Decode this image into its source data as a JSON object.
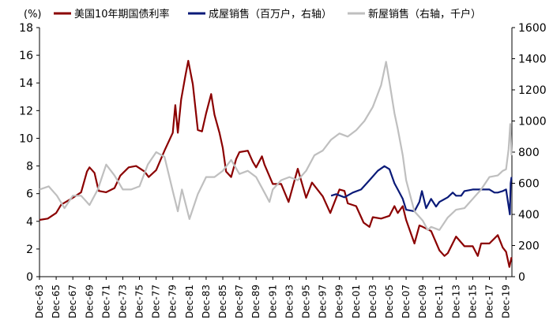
{
  "chart_data": {
    "type": "line",
    "left_unit_label": "(%)",
    "y_left": {
      "min": 0,
      "max": 18,
      "ticks": [
        0,
        2,
        4,
        6,
        8,
        10,
        12,
        14,
        16,
        18
      ]
    },
    "y_right": {
      "min": 0,
      "max": 1600,
      "ticks": [
        0,
        200,
        400,
        600,
        800,
        1000,
        1200,
        1400,
        1600
      ]
    },
    "x_range": [
      1963.9,
      2020.6
    ],
    "x_tick_labels": [
      "Dec-63",
      "Dec-65",
      "Dec-67",
      "Dec-69",
      "Dec-71",
      "Dec-73",
      "Dec-75",
      "Dec-77",
      "Dec-79",
      "Dec-81",
      "Dec-83",
      "Dec-85",
      "Dec-87",
      "Dec-89",
      "Dec-91",
      "Dec-93",
      "Dec-95",
      "Dec-97",
      "Dec-99",
      "Dec-01",
      "Dec-03",
      "Dec-05",
      "Dec-07",
      "Dec-09",
      "Dec-11",
      "Dec-13",
      "Dec-15",
      "Dec-17",
      "Dec-19"
    ],
    "legend_position": "top",
    "series": [
      {
        "name": "美国10年期国债利率",
        "axis": "left",
        "color": "#8B0000",
        "points": [
          [
            1963.9,
            4.1
          ],
          [
            1964.9,
            4.2
          ],
          [
            1965.9,
            4.6
          ],
          [
            1966.5,
            5.2
          ],
          [
            1967.9,
            5.7
          ],
          [
            1968.9,
            6.1
          ],
          [
            1969.6,
            7.6
          ],
          [
            1969.9,
            7.9
          ],
          [
            1970.5,
            7.5
          ],
          [
            1971.0,
            6.2
          ],
          [
            1971.9,
            6.1
          ],
          [
            1972.9,
            6.4
          ],
          [
            1973.6,
            7.3
          ],
          [
            1974.6,
            7.9
          ],
          [
            1975.5,
            8.0
          ],
          [
            1976.5,
            7.6
          ],
          [
            1977.0,
            7.2
          ],
          [
            1977.9,
            7.7
          ],
          [
            1978.9,
            9.1
          ],
          [
            1979.9,
            10.4
          ],
          [
            1980.2,
            12.4
          ],
          [
            1980.5,
            10.4
          ],
          [
            1980.9,
            12.8
          ],
          [
            1981.4,
            14.5
          ],
          [
            1981.75,
            15.6
          ],
          [
            1982.3,
            13.9
          ],
          [
            1982.9,
            10.6
          ],
          [
            1983.4,
            10.5
          ],
          [
            1983.9,
            11.8
          ],
          [
            1984.5,
            13.2
          ],
          [
            1984.9,
            11.7
          ],
          [
            1985.5,
            10.4
          ],
          [
            1985.9,
            9.3
          ],
          [
            1986.3,
            7.6
          ],
          [
            1986.9,
            7.2
          ],
          [
            1987.5,
            8.5
          ],
          [
            1987.9,
            9.0
          ],
          [
            1988.9,
            9.1
          ],
          [
            1989.5,
            8.3
          ],
          [
            1989.9,
            7.9
          ],
          [
            1990.6,
            8.7
          ],
          [
            1990.9,
            8.1
          ],
          [
            1991.9,
            6.7
          ],
          [
            1992.9,
            6.7
          ],
          [
            1993.8,
            5.4
          ],
          [
            1994.9,
            7.8
          ],
          [
            1995.9,
            5.7
          ],
          [
            1996.6,
            6.8
          ],
          [
            1997.9,
            5.8
          ],
          [
            1998.8,
            4.6
          ],
          [
            1999.9,
            6.3
          ],
          [
            2000.5,
            6.2
          ],
          [
            2000.9,
            5.3
          ],
          [
            2001.9,
            5.1
          ],
          [
            2002.8,
            3.9
          ],
          [
            2003.5,
            3.6
          ],
          [
            2003.9,
            4.3
          ],
          [
            2004.9,
            4.2
          ],
          [
            2005.9,
            4.4
          ],
          [
            2006.5,
            5.1
          ],
          [
            2006.9,
            4.6
          ],
          [
            2007.5,
            5.1
          ],
          [
            2007.9,
            4.1
          ],
          [
            2008.9,
            2.4
          ],
          [
            2009.5,
            3.7
          ],
          [
            2009.9,
            3.6
          ],
          [
            2010.9,
            3.3
          ],
          [
            2011.9,
            1.9
          ],
          [
            2012.5,
            1.5
          ],
          [
            2012.9,
            1.7
          ],
          [
            2013.9,
            2.9
          ],
          [
            2014.9,
            2.2
          ],
          [
            2015.9,
            2.2
          ],
          [
            2016.5,
            1.5
          ],
          [
            2016.9,
            2.4
          ],
          [
            2017.9,
            2.4
          ],
          [
            2018.9,
            3.0
          ],
          [
            2019.5,
            2.1
          ],
          [
            2019.9,
            1.8
          ],
          [
            2020.3,
            0.7
          ],
          [
            2020.55,
            1.4
          ]
        ]
      },
      {
        "name": "成屋销售（百万户，右轴）",
        "axis": "right",
        "color": "#0A1A78",
        "points": [
          [
            1998.9,
            520
          ],
          [
            1999.5,
            530
          ],
          [
            2000.5,
            510
          ],
          [
            2001.5,
            540
          ],
          [
            2002.5,
            560
          ],
          [
            2003.5,
            620
          ],
          [
            2004.5,
            680
          ],
          [
            2005.3,
            710
          ],
          [
            2005.9,
            690
          ],
          [
            2006.5,
            600
          ],
          [
            2007.0,
            550
          ],
          [
            2007.5,
            500
          ],
          [
            2007.9,
            430
          ],
          [
            2008.9,
            420
          ],
          [
            2009.5,
            480
          ],
          [
            2009.8,
            550
          ],
          [
            2010.3,
            440
          ],
          [
            2010.9,
            500
          ],
          [
            2011.5,
            450
          ],
          [
            2011.9,
            480
          ],
          [
            2012.9,
            510
          ],
          [
            2013.5,
            540
          ],
          [
            2013.9,
            520
          ],
          [
            2014.5,
            520
          ],
          [
            2014.9,
            550
          ],
          [
            2015.9,
            560
          ],
          [
            2016.9,
            560
          ],
          [
            2017.9,
            560
          ],
          [
            2018.5,
            540
          ],
          [
            2018.9,
            540
          ],
          [
            2019.5,
            550
          ],
          [
            2019.9,
            560
          ],
          [
            2020.35,
            400
          ],
          [
            2020.45,
            600
          ],
          [
            2020.55,
            640
          ]
        ]
      },
      {
        "name": "新屋销售（右轴，千户）",
        "axis": "right",
        "color": "#BFBFBF",
        "points": [
          [
            1963.9,
            560
          ],
          [
            1965.0,
            580
          ],
          [
            1966.0,
            520
          ],
          [
            1966.9,
            440
          ],
          [
            1967.9,
            520
          ],
          [
            1968.9,
            520
          ],
          [
            1969.9,
            460
          ],
          [
            1970.9,
            560
          ],
          [
            1971.9,
            720
          ],
          [
            1972.9,
            650
          ],
          [
            1973.9,
            560
          ],
          [
            1974.9,
            560
          ],
          [
            1975.9,
            580
          ],
          [
            1976.9,
            720
          ],
          [
            1977.9,
            800
          ],
          [
            1978.9,
            770
          ],
          [
            1979.9,
            550
          ],
          [
            1980.5,
            420
          ],
          [
            1981.0,
            560
          ],
          [
            1981.9,
            370
          ],
          [
            1982.9,
            530
          ],
          [
            1983.9,
            640
          ],
          [
            1984.9,
            640
          ],
          [
            1985.9,
            680
          ],
          [
            1986.9,
            750
          ],
          [
            1987.9,
            660
          ],
          [
            1988.9,
            680
          ],
          [
            1989.9,
            640
          ],
          [
            1990.9,
            540
          ],
          [
            1991.5,
            480
          ],
          [
            1991.9,
            560
          ],
          [
            1992.9,
            620
          ],
          [
            1993.9,
            640
          ],
          [
            1994.9,
            620
          ],
          [
            1995.9,
            680
          ],
          [
            1996.9,
            780
          ],
          [
            1997.9,
            810
          ],
          [
            1998.9,
            880
          ],
          [
            1999.9,
            920
          ],
          [
            2000.9,
            900
          ],
          [
            2001.9,
            940
          ],
          [
            2002.9,
            1000
          ],
          [
            2003.9,
            1090
          ],
          [
            2004.9,
            1230
          ],
          [
            2005.5,
            1380
          ],
          [
            2005.9,
            1250
          ],
          [
            2006.5,
            1050
          ],
          [
            2006.9,
            950
          ],
          [
            2007.5,
            780
          ],
          [
            2007.9,
            620
          ],
          [
            2008.9,
            420
          ],
          [
            2009.9,
            360
          ],
          [
            2010.5,
            300
          ],
          [
            2010.9,
            320
          ],
          [
            2011.9,
            300
          ],
          [
            2012.9,
            380
          ],
          [
            2013.9,
            430
          ],
          [
            2014.9,
            440
          ],
          [
            2015.9,
            500
          ],
          [
            2016.9,
            560
          ],
          [
            2017.9,
            640
          ],
          [
            2018.9,
            650
          ],
          [
            2019.5,
            680
          ],
          [
            2019.9,
            690
          ],
          [
            2020.2,
            820
          ],
          [
            2020.4,
            980
          ],
          [
            2020.55,
            780
          ]
        ]
      }
    ]
  }
}
